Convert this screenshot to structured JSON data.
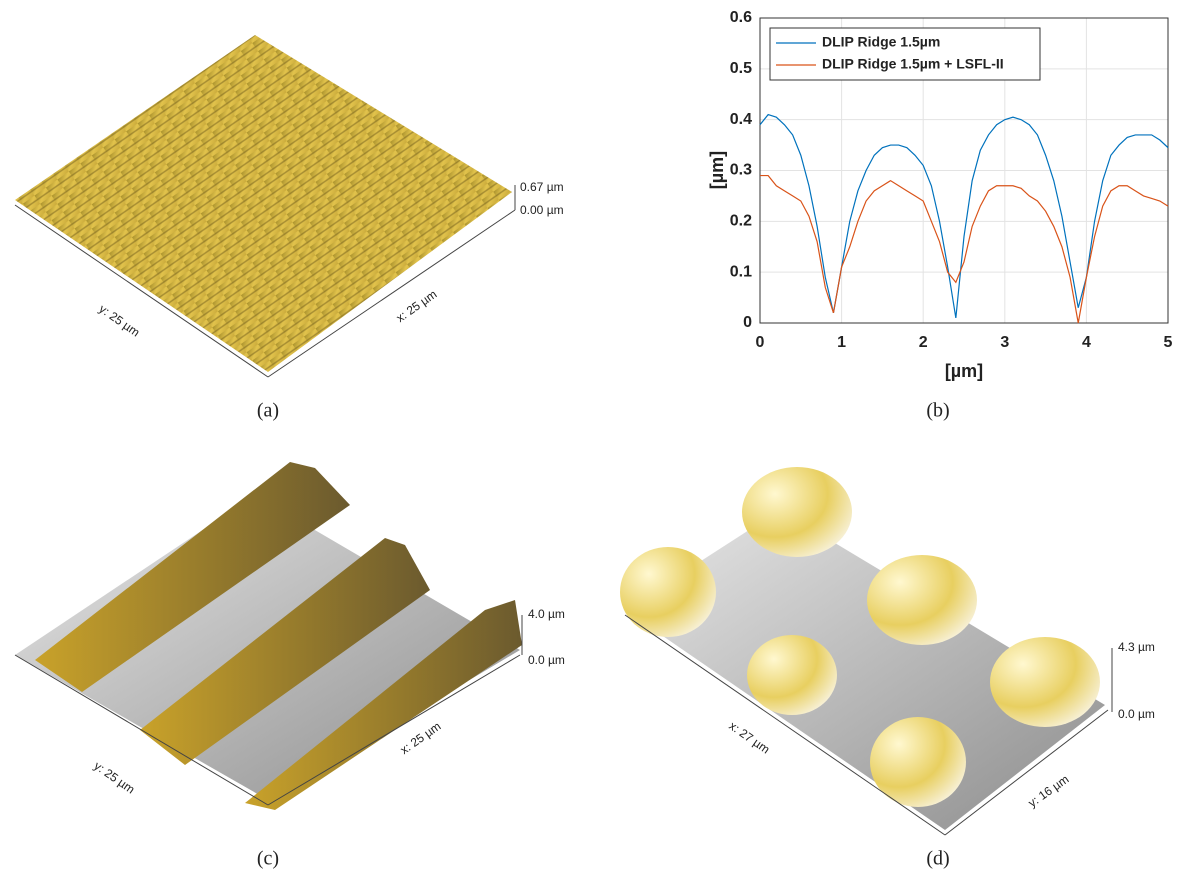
{
  "panel_a": {
    "caption": "(a)",
    "z_max": "0.67 µm",
    "z_min": "0.00 µm",
    "y_label": "y: 25 µm",
    "x_label": "x: 25 µm"
  },
  "chart_data": {
    "type": "line",
    "caption": "(b)",
    "xlabel": "[µm]",
    "ylabel": "[µm]",
    "x": [
      0,
      0.1,
      0.2,
      0.3,
      0.4,
      0.5,
      0.6,
      0.7,
      0.8,
      0.9,
      1.0,
      1.1,
      1.2,
      1.3,
      1.4,
      1.5,
      1.6,
      1.7,
      1.8,
      1.9,
      2.0,
      2.1,
      2.2,
      2.3,
      2.4,
      2.5,
      2.6,
      2.7,
      2.8,
      2.9,
      3.0,
      3.1,
      3.2,
      3.3,
      3.4,
      3.5,
      3.6,
      3.7,
      3.8,
      3.9,
      4.0,
      4.1,
      4.2,
      4.3,
      4.4,
      4.5,
      4.6,
      4.7,
      4.8,
      4.9,
      5.0
    ],
    "series": [
      {
        "name": "DLIP Ridge 1.5µm",
        "color": "#0072bd",
        "values": [
          0.39,
          0.41,
          0.405,
          0.39,
          0.37,
          0.33,
          0.27,
          0.19,
          0.09,
          0.02,
          0.11,
          0.2,
          0.26,
          0.3,
          0.33,
          0.345,
          0.35,
          0.35,
          0.345,
          0.33,
          0.31,
          0.27,
          0.2,
          0.11,
          0.01,
          0.17,
          0.28,
          0.34,
          0.37,
          0.39,
          0.4,
          0.405,
          0.4,
          0.39,
          0.37,
          0.33,
          0.28,
          0.21,
          0.12,
          0.03,
          0.09,
          0.2,
          0.28,
          0.33,
          0.35,
          0.365,
          0.37,
          0.37,
          0.37,
          0.36,
          0.345
        ]
      },
      {
        "name": "DLIP Ridge 1.5µm + LSFL-II",
        "color": "#d95319",
        "values": [
          0.29,
          0.29,
          0.27,
          0.26,
          0.25,
          0.24,
          0.21,
          0.16,
          0.07,
          0.02,
          0.11,
          0.15,
          0.2,
          0.24,
          0.26,
          0.27,
          0.28,
          0.27,
          0.26,
          0.25,
          0.24,
          0.2,
          0.16,
          0.1,
          0.08,
          0.12,
          0.19,
          0.23,
          0.26,
          0.27,
          0.27,
          0.27,
          0.265,
          0.25,
          0.24,
          0.22,
          0.19,
          0.15,
          0.09,
          0.0,
          0.09,
          0.17,
          0.23,
          0.26,
          0.27,
          0.27,
          0.26,
          0.25,
          0.245,
          0.24,
          0.23
        ]
      }
    ],
    "xlim": [
      0,
      5
    ],
    "ylim": [
      0,
      0.6
    ],
    "xticks": [
      0,
      1,
      2,
      3,
      4,
      5
    ],
    "yticks": [
      0,
      0.1,
      0.2,
      0.3,
      0.4,
      0.5,
      0.6
    ],
    "grid": true,
    "legend": "upper-left"
  },
  "panel_c": {
    "caption": "(c)",
    "z_max": "4.0 µm",
    "z_min": "0.0 µm",
    "y_label": "y: 25 µm",
    "x_label": "x: 25 µm"
  },
  "panel_d": {
    "caption": "(d)",
    "z_max": "4.3 µm",
    "z_min": "0.0 µm",
    "x_label": "x: 27 µm",
    "y_label": "y: 16 µm"
  }
}
